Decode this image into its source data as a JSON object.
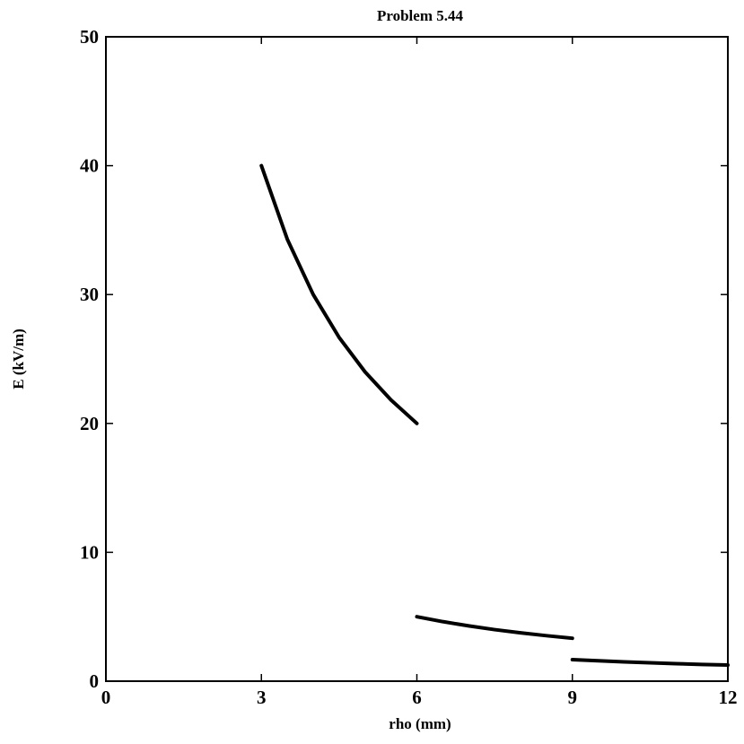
{
  "chart_data": {
    "type": "line",
    "title": "Problem 5.44",
    "xlabel": "rho (mm)",
    "ylabel": "E (kV/m)",
    "xlim": [
      0,
      12
    ],
    "ylim": [
      0,
      50
    ],
    "xticks": [
      0,
      3,
      6,
      9,
      12
    ],
    "yticks": [
      0,
      10,
      20,
      30,
      40,
      50
    ],
    "grid": false,
    "legend": "none",
    "line_color": "#000000",
    "series": [
      {
        "x": [
          3,
          3.5,
          4,
          4.5,
          5,
          5.5,
          6
        ],
        "y": [
          40,
          34.29,
          30,
          26.67,
          24,
          21.82,
          20
        ]
      },
      {
        "x": [
          6,
          6.5,
          7,
          7.5,
          8,
          8.5,
          9
        ],
        "y": [
          5,
          4.62,
          4.29,
          4,
          3.75,
          3.53,
          3.33
        ]
      },
      {
        "x": [
          9,
          9.5,
          10,
          10.5,
          11,
          11.5,
          12
        ],
        "y": [
          1.67,
          1.58,
          1.5,
          1.43,
          1.36,
          1.3,
          1.25
        ]
      }
    ]
  }
}
